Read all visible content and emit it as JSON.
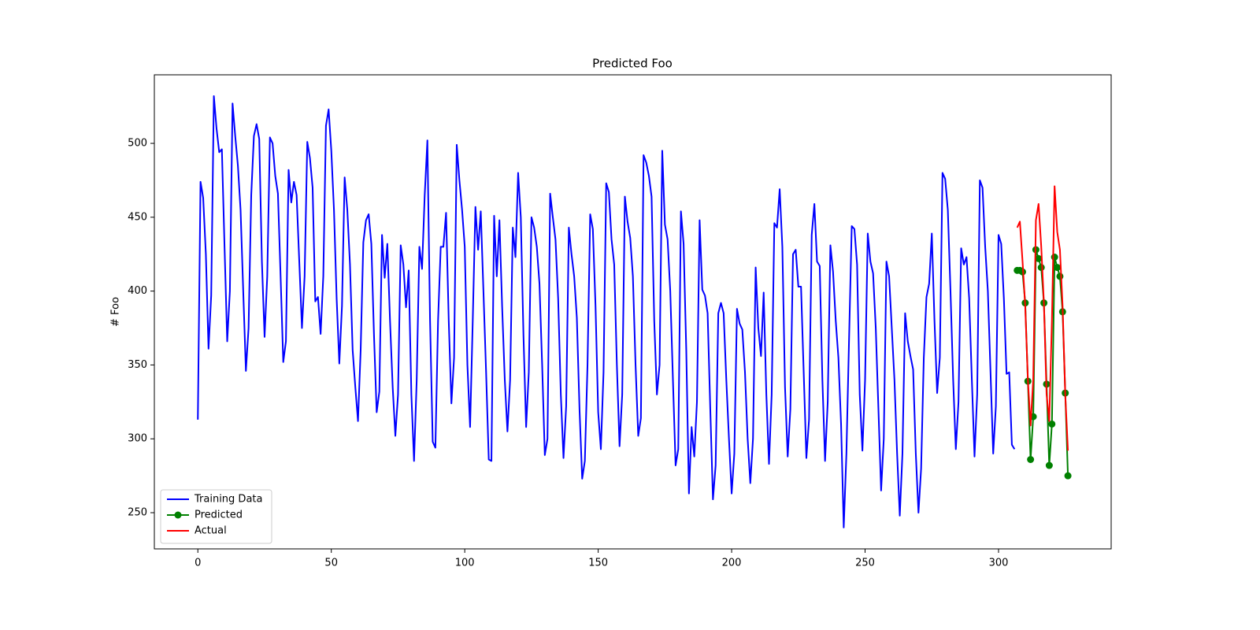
{
  "chart_data": {
    "type": "line",
    "title": "Predicted Foo",
    "y_label": "# Foo",
    "xlim": [
      -16.3,
      342.2
    ],
    "ylim": [
      225.5,
      546.4
    ],
    "xticks": [
      0,
      50,
      100,
      150,
      200,
      250,
      300
    ],
    "yticks": [
      250,
      300,
      350,
      400,
      450,
      500
    ],
    "grid": false,
    "legend": "lower left",
    "series": [
      {
        "name": "Training Data",
        "color": "#0000ff",
        "marker": "none",
        "x": [
          0,
          1,
          2,
          3,
          4,
          5,
          6,
          7,
          8,
          9,
          10,
          11,
          12,
          13,
          14,
          15,
          16,
          17,
          18,
          19,
          20,
          21,
          22,
          23,
          24,
          25,
          26,
          27,
          28,
          29,
          30,
          31,
          32,
          33,
          34,
          35,
          36,
          37,
          38,
          39,
          40,
          41,
          42,
          43,
          44,
          45,
          46,
          47,
          48,
          49,
          50,
          51,
          52,
          53,
          54,
          55,
          56,
          57,
          58,
          59,
          60,
          61,
          62,
          63,
          64,
          65,
          66,
          67,
          68,
          69,
          70,
          71,
          72,
          73,
          74,
          75,
          76,
          77,
          78,
          79,
          80,
          81,
          82,
          83,
          84,
          85,
          86,
          87,
          88,
          89,
          90,
          91,
          92,
          93,
          94,
          95,
          96,
          97,
          98,
          99,
          100,
          101,
          102,
          103,
          104,
          105,
          106,
          107,
          108,
          109,
          110,
          111,
          112,
          113,
          114,
          115,
          116,
          117,
          118,
          119,
          120,
          121,
          122,
          123,
          124,
          125,
          126,
          127,
          128,
          129,
          130,
          131,
          132,
          133,
          134,
          135,
          136,
          137,
          138,
          139,
          140,
          141,
          142,
          143,
          144,
          145,
          146,
          147,
          148,
          149,
          150,
          151,
          152,
          153,
          154,
          155,
          156,
          157,
          158,
          159,
          160,
          161,
          162,
          163,
          164,
          165,
          166,
          167,
          168,
          169,
          170,
          171,
          172,
          173,
          174,
          175,
          176,
          177,
          178,
          179,
          180,
          181,
          182,
          183,
          184,
          185,
          186,
          187,
          188,
          189,
          190,
          191,
          192,
          193,
          194,
          195,
          196,
          197,
          198,
          199,
          200,
          201,
          202,
          203,
          204,
          205,
          206,
          207,
          208,
          209,
          210,
          211,
          212,
          213,
          214,
          215,
          216,
          217,
          218,
          219,
          220,
          221,
          222,
          223,
          224,
          225,
          226,
          227,
          228,
          229,
          230,
          231,
          232,
          233,
          234,
          235,
          236,
          237,
          238,
          239,
          240,
          241,
          242,
          243,
          244,
          245,
          246,
          247,
          248,
          249,
          250,
          251,
          252,
          253,
          254,
          255,
          256,
          257,
          258,
          259,
          260,
          261,
          262,
          263,
          264,
          265,
          266,
          267,
          268,
          269,
          270,
          271,
          272,
          273,
          274,
          275,
          276,
          277,
          278,
          279,
          280,
          281,
          282,
          283,
          284,
          285,
          286,
          287,
          288,
          289,
          290,
          291,
          292,
          293,
          294,
          295,
          296,
          297,
          298,
          299,
          300,
          301,
          302,
          303,
          304,
          305,
          306
        ],
        "values": [
          313,
          474,
          463,
          425,
          361,
          397,
          532,
          510,
          494,
          496,
          430,
          366,
          400,
          527,
          505,
          485,
          455,
          400,
          346,
          375,
          465,
          505,
          513,
          503,
          420,
          369,
          410,
          504,
          500,
          478,
          466,
          410,
          352,
          366,
          482,
          460,
          474,
          465,
          420,
          375,
          410,
          501,
          490,
          470,
          393,
          396,
          371,
          410,
          512,
          523,
          495,
          455,
          395,
          351,
          390,
          477,
          455,
          418,
          360,
          335,
          312,
          360,
          433,
          448,
          452,
          432,
          370,
          318,
          332,
          438,
          409,
          432,
          380,
          335,
          302,
          330,
          431,
          418,
          389,
          414,
          330,
          285,
          340,
          430,
          415,
          465,
          502,
          380,
          298,
          294,
          380,
          430,
          430,
          453,
          380,
          324,
          355,
          499,
          475,
          455,
          430,
          350,
          308,
          380,
          457,
          428,
          454,
          400,
          345,
          286,
          285,
          451,
          410,
          448,
          390,
          340,
          305,
          340,
          443,
          423,
          480,
          450,
          370,
          308,
          345,
          450,
          443,
          430,
          405,
          350,
          289,
          300,
          466,
          450,
          435,
          395,
          330,
          287,
          322,
          443,
          425,
          410,
          382,
          320,
          273,
          285,
          350,
          452,
          442,
          390,
          318,
          293,
          345,
          473,
          467,
          435,
          418,
          350,
          295,
          330,
          464,
          447,
          436,
          410,
          350,
          302,
          314,
          492,
          487,
          478,
          464,
          380,
          330,
          350,
          495,
          445,
          435,
          400,
          340,
          282,
          293,
          454,
          432,
          360,
          263,
          308,
          288,
          325,
          448,
          401,
          397,
          385,
          320,
          259,
          282,
          385,
          392,
          385,
          340,
          300,
          263,
          290,
          388,
          378,
          374,
          345,
          300,
          270,
          300,
          416,
          375,
          356,
          399,
          330,
          283,
          330,
          446,
          443,
          469,
          430,
          335,
          288,
          320,
          425,
          428,
          403,
          403,
          345,
          287,
          313,
          438,
          459,
          420,
          417,
          340,
          285,
          325,
          431,
          413,
          380,
          355,
          310,
          240,
          290,
          368,
          444,
          442,
          418,
          330,
          292,
          340,
          439,
          420,
          412,
          375,
          320,
          265,
          300,
          420,
          410,
          375,
          340,
          290,
          248,
          290,
          385,
          366,
          356,
          347,
          290,
          250,
          280,
          355,
          396,
          405,
          439,
          380,
          331,
          355,
          480,
          476,
          455,
          400,
          340,
          293,
          325,
          429,
          418,
          423,
          395,
          340,
          288,
          330,
          475,
          470,
          430,
          400,
          345,
          290,
          322,
          438,
          432,
          395,
          344,
          345,
          296,
          293
        ]
      },
      {
        "name": "Predicted",
        "color": "#008000",
        "marker": "o",
        "x": [
          307,
          308,
          309,
          310,
          311,
          312,
          313,
          314,
          315,
          316,
          317,
          318,
          319,
          320,
          321,
          322,
          323,
          324,
          325,
          326
        ],
        "values": [
          414,
          414,
          413,
          392,
          339,
          286,
          315,
          428,
          422,
          416,
          392,
          337,
          282,
          310,
          423,
          416,
          410,
          386,
          331,
          275
        ]
      },
      {
        "name": "Actual",
        "color": "#ff0000",
        "marker": "none",
        "x": [
          307,
          308,
          309,
          310,
          311,
          312,
          313,
          314,
          315,
          316,
          317,
          318,
          319,
          320,
          321,
          322,
          323,
          324,
          325,
          326
        ],
        "values": [
          443,
          447,
          420,
          390,
          340,
          309,
          340,
          448,
          459,
          430,
          392,
          330,
          312,
          380,
          471,
          440,
          428,
          390,
          330,
          292
        ]
      }
    ]
  }
}
